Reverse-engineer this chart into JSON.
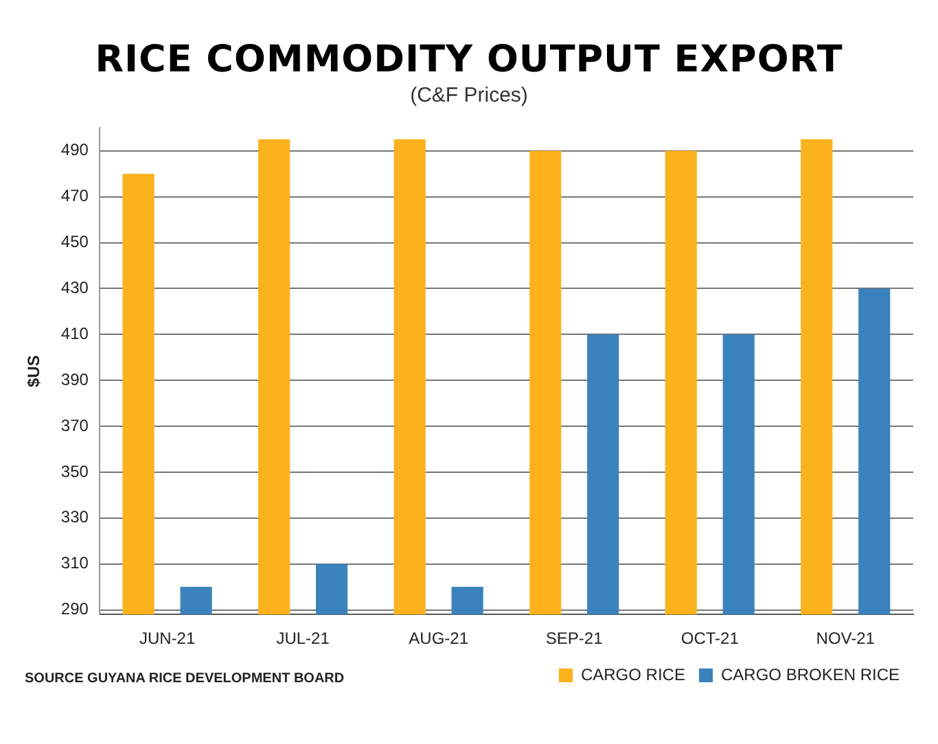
{
  "chart_data": {
    "type": "bar",
    "title": "RICE COMMODITY OUTPUT EXPORT",
    "subtitle": "(C&F Prices)",
    "ylabel": "$US",
    "categories": [
      "JUN-21",
      "JUL-21",
      "AUG-21",
      "SEP-21",
      "OCT-21",
      "NOV-21"
    ],
    "series": [
      {
        "name": "CARGO RICE",
        "color": "#fbb21c",
        "values": [
          480,
          495,
          495,
          490,
          490,
          495
        ]
      },
      {
        "name": "CARGO BROKEN RICE",
        "color": "#3a82bd",
        "values": [
          300,
          310,
          300,
          410,
          410,
          430
        ]
      }
    ],
    "ylim": [
      288,
      500
    ],
    "yticks": [
      290,
      310,
      330,
      350,
      370,
      390,
      410,
      430,
      450,
      470,
      490
    ],
    "grid": "y",
    "legend": "bottom right",
    "annotations": [
      "SOURCE GUYANA RICE DEVELOPMENT BOARD"
    ]
  }
}
